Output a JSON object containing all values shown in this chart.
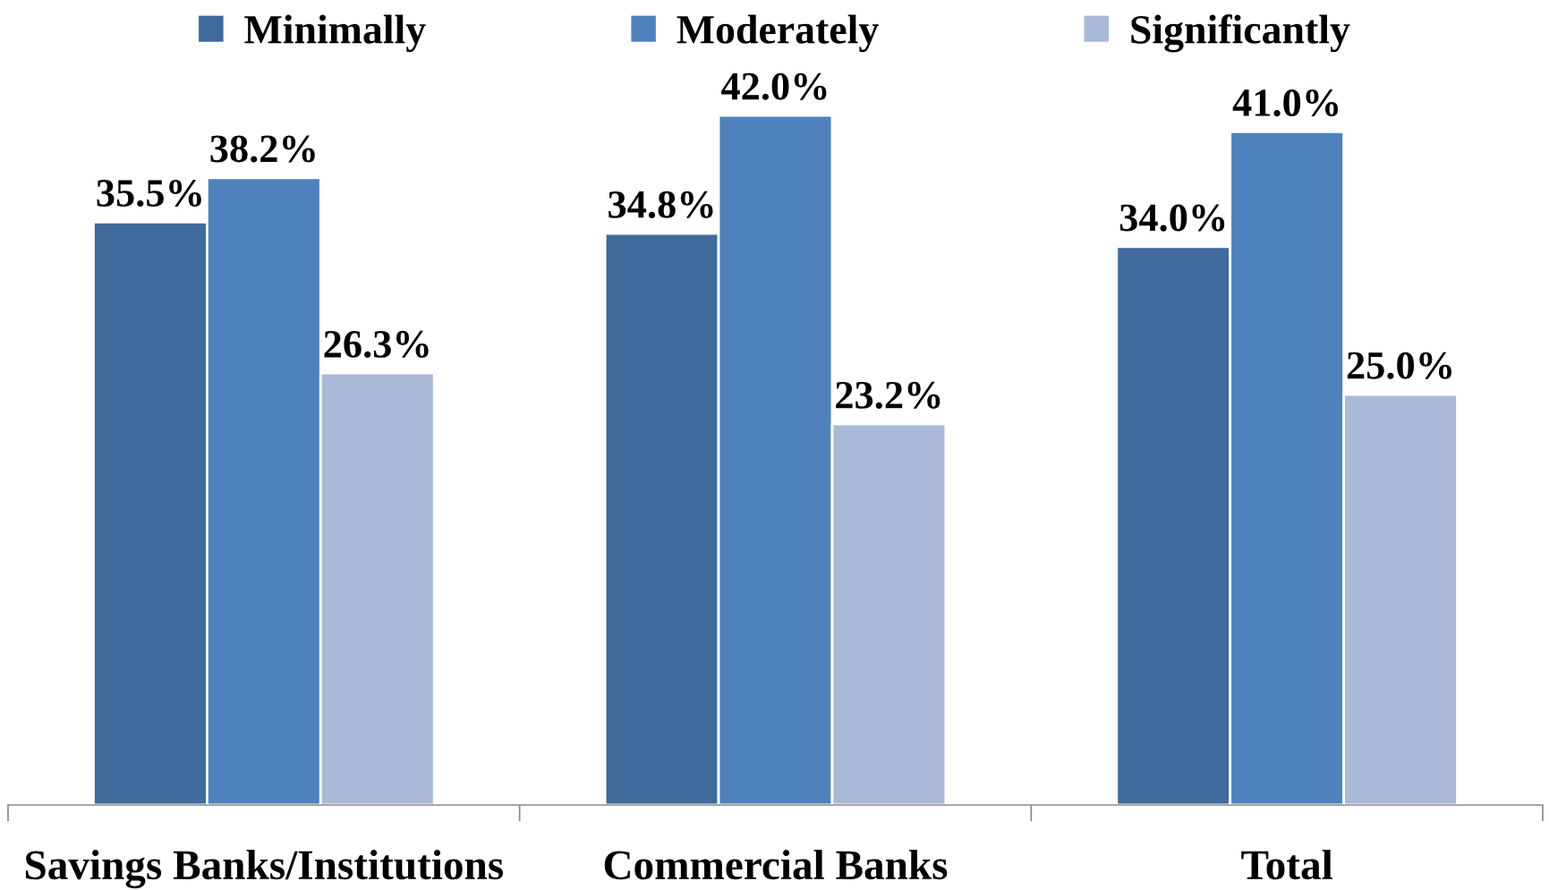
{
  "chart_data": {
    "type": "bar",
    "categories": [
      "Savings Banks/Institutions",
      "Commercial Banks",
      "Total"
    ],
    "series": [
      {
        "name": "Minimally",
        "color": "#3f6a9b",
        "values": [
          35.5,
          34.8,
          34.0
        ],
        "value_labels": [
          "35.5%",
          "34.8%",
          "34.0%"
        ]
      },
      {
        "name": "Moderately",
        "color": "#4f81bd",
        "values": [
          38.2,
          42.0,
          41.0
        ],
        "value_labels": [
          "38.2%",
          "42.0%",
          "41.0%"
        ]
      },
      {
        "name": "Significantly",
        "color": "#a9b9d7",
        "values": [
          26.3,
          23.2,
          25.0
        ],
        "value_labels": [
          "26.3%",
          "23.2%",
          "25.0%"
        ]
      }
    ],
    "tick_labels": "x",
    "legend": "top"
  }
}
